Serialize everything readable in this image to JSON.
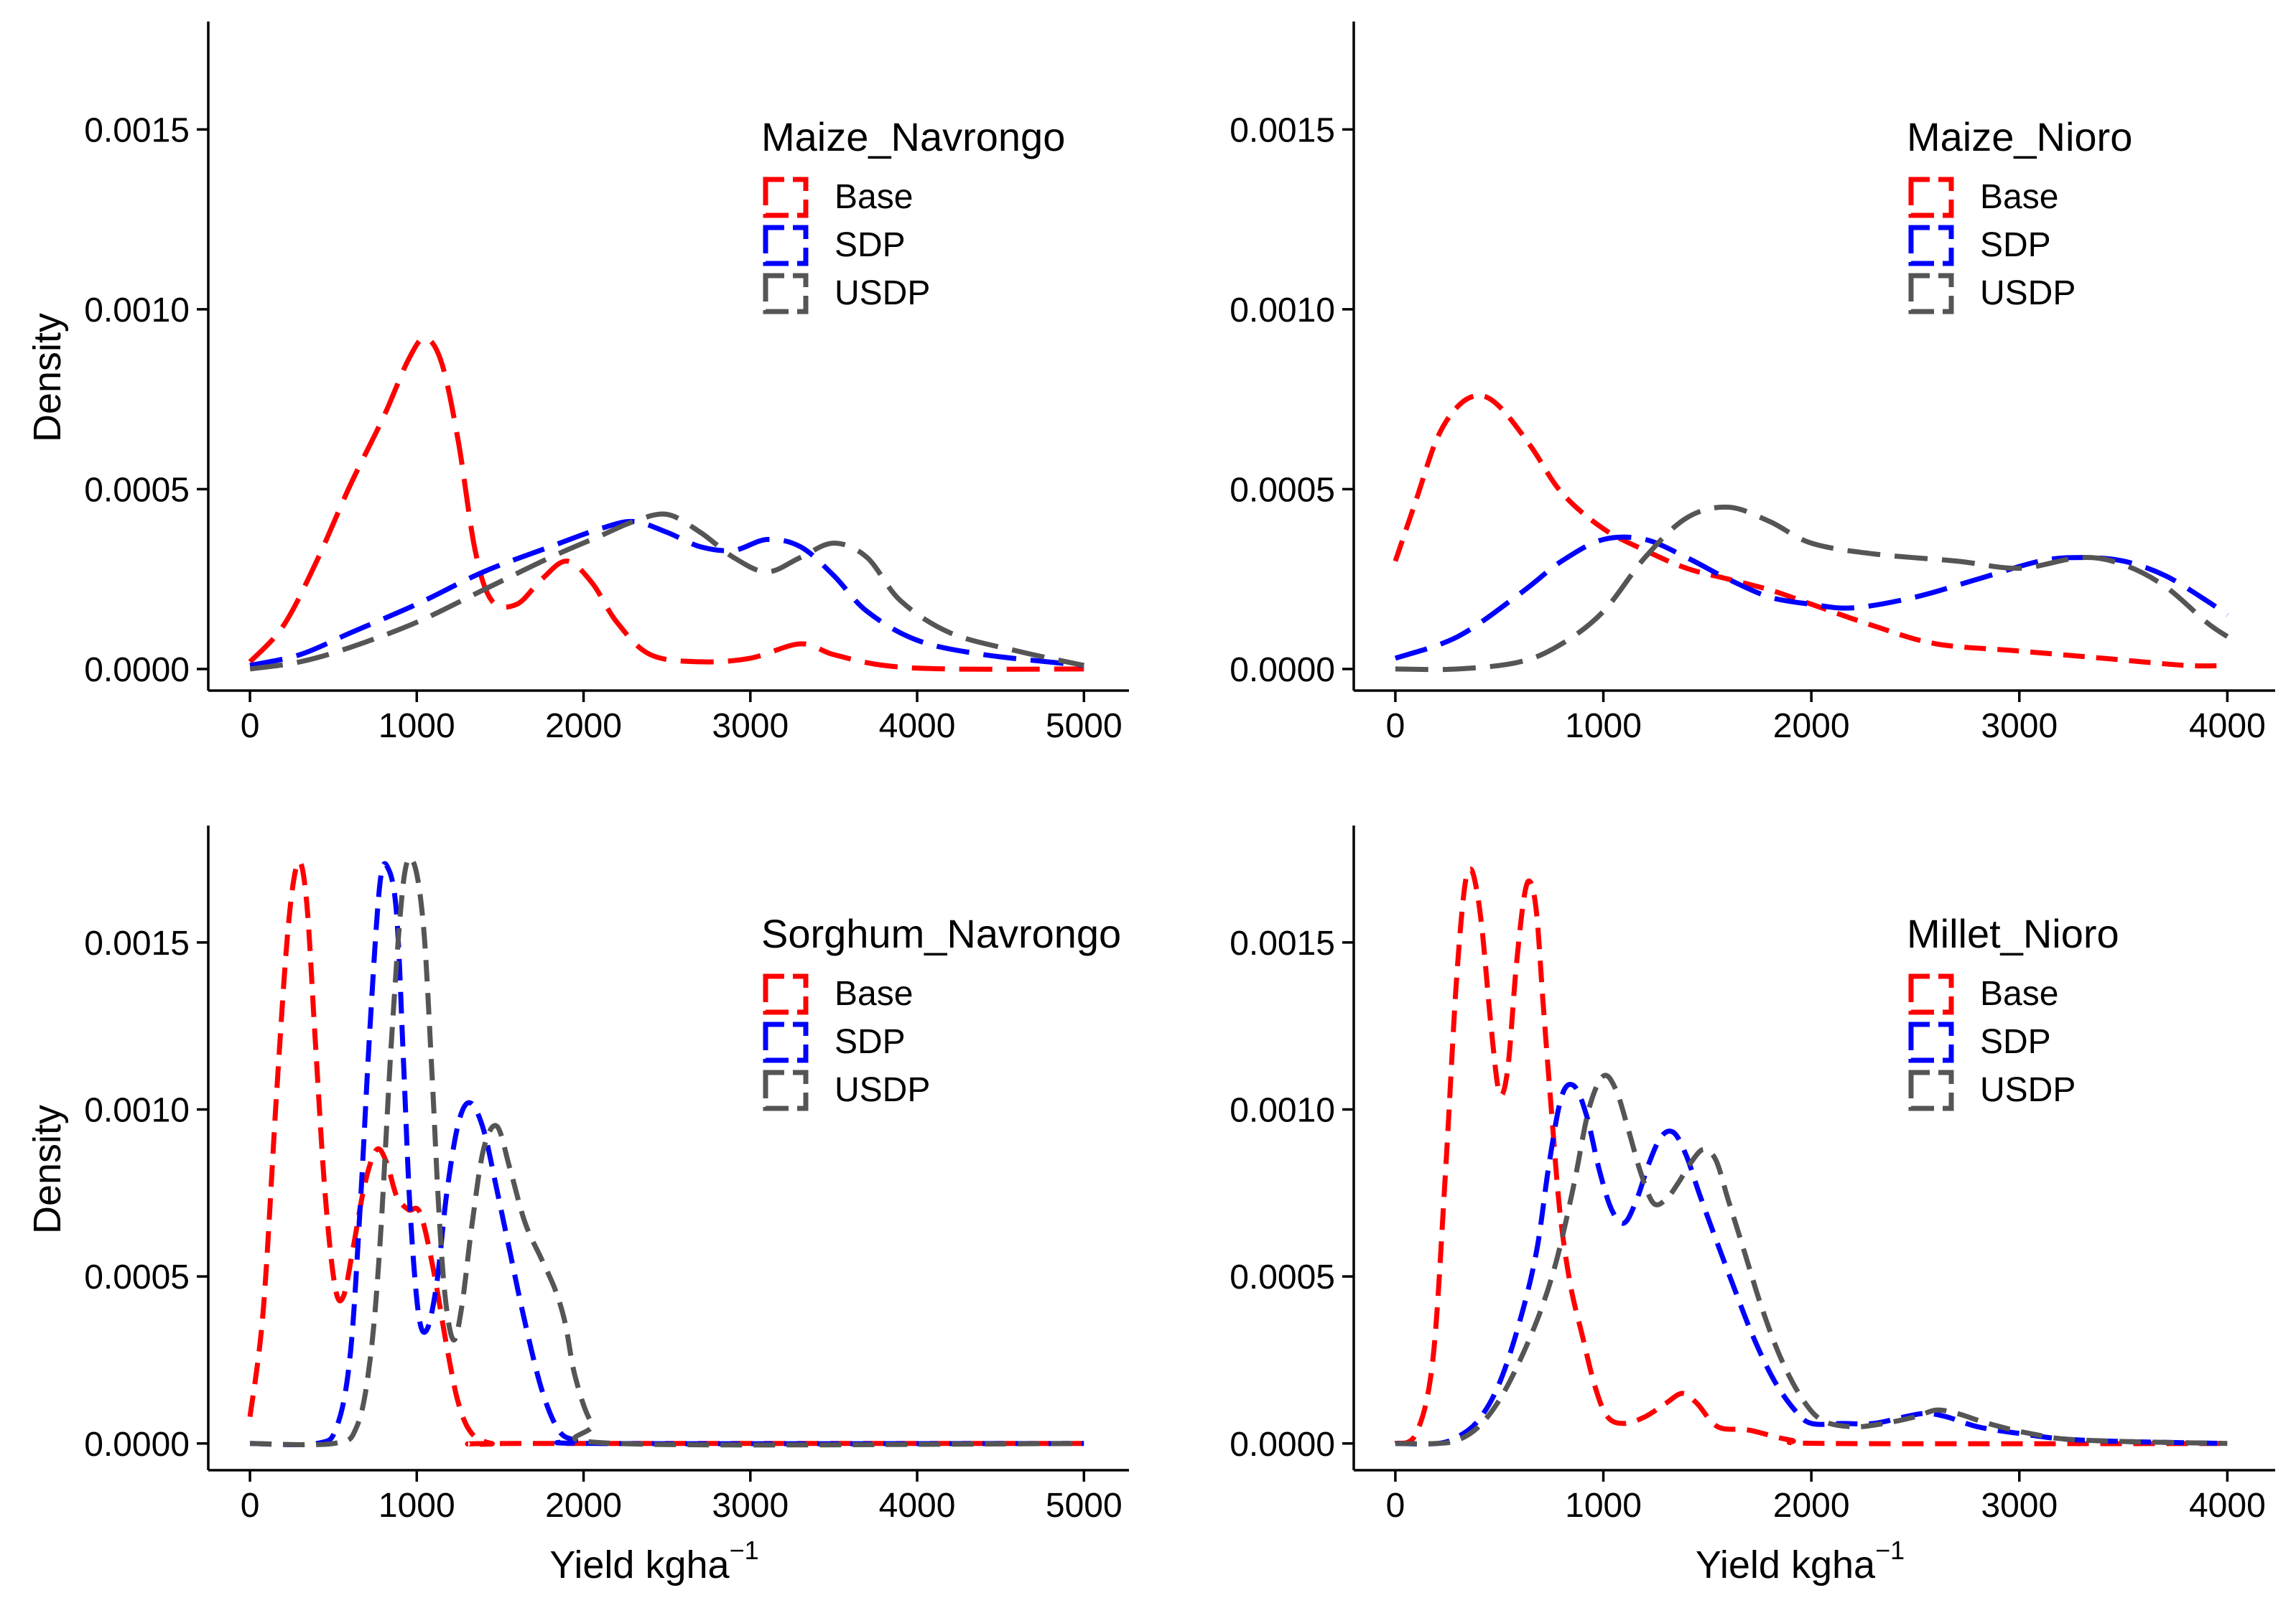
{
  "chart_data": [
    {
      "type": "line",
      "id": "maize-navrongo",
      "legend_title": "Maize_Navrongo",
      "ylabel": "Density",
      "xlabel": "",
      "xlim": [
        -250,
        5270
      ],
      "ylim": [
        -6e-05,
        0.0018
      ],
      "x_ticks": [
        0,
        1000,
        2000,
        3000,
        4000,
        5000
      ],
      "x_tick_labels": [
        "0",
        "1000",
        "2000",
        "3000",
        "4000",
        "5000"
      ],
      "y_ticks": [
        0,
        0.0005,
        0.001,
        0.0015
      ],
      "y_tick_labels": [
        "0.0000",
        "0.0005",
        "0.0010",
        "0.0015"
      ],
      "legend_position": "top-right",
      "series": [
        {
          "name": "Base",
          "color": "#ff0000",
          "dash": "long",
          "x": [
            0,
            200,
            400,
            600,
            800,
            950,
            1050,
            1150,
            1250,
            1350,
            1450,
            1600,
            1750,
            1900,
            2050,
            2200,
            2400,
            2700,
            3000,
            3300,
            3500,
            3800,
            4200,
            5000
          ],
          "y": [
            2e-05,
            0.00012,
            0.0003,
            0.00051,
            0.0007,
            0.00086,
            0.00092,
            0.00085,
            0.00063,
            0.00033,
            0.00019,
            0.00018,
            0.00025,
            0.0003,
            0.00024,
            0.00013,
            4e-05,
            2e-05,
            3e-05,
            7e-05,
            4e-05,
            1e-05,
            0,
            0
          ]
        },
        {
          "name": "SDP",
          "color": "#0000ff",
          "dash": "long",
          "x": [
            0,
            300,
            600,
            1000,
            1400,
            1800,
            2100,
            2300,
            2500,
            2700,
            2900,
            3100,
            3300,
            3500,
            3700,
            4000,
            4400,
            5000
          ],
          "y": [
            1e-05,
            4e-05,
            0.0001,
            0.00018,
            0.00027,
            0.00034,
            0.00039,
            0.00041,
            0.00038,
            0.00034,
            0.00033,
            0.00036,
            0.00034,
            0.00026,
            0.00016,
            8e-05,
            4e-05,
            1e-05
          ]
        },
        {
          "name": "USDP",
          "color": "#555555",
          "dash": "long",
          "x": [
            0,
            300,
            600,
            1000,
            1400,
            1800,
            2100,
            2300,
            2500,
            2700,
            2900,
            3100,
            3300,
            3500,
            3700,
            3900,
            4200,
            4600,
            5000
          ],
          "y": [
            0,
            2e-05,
            6e-05,
            0.00013,
            0.00022,
            0.00031,
            0.00037,
            0.00041,
            0.00043,
            0.00038,
            0.00031,
            0.00027,
            0.00031,
            0.00035,
            0.00031,
            0.00019,
            0.0001,
            5e-05,
            1e-05
          ]
        }
      ]
    },
    {
      "type": "line",
      "id": "maize-nioro",
      "legend_title": "Maize_Nioro",
      "ylabel": "",
      "xlabel": "",
      "xlim": [
        -200,
        4230
      ],
      "ylim": [
        -6e-05,
        0.0018
      ],
      "x_ticks": [
        0,
        1000,
        2000,
        3000,
        4000
      ],
      "x_tick_labels": [
        "0",
        "1000",
        "2000",
        "3000",
        "4000"
      ],
      "y_ticks": [
        0,
        0.0005,
        0.001,
        0.0015
      ],
      "y_tick_labels": [
        "0.0000",
        "0.0005",
        "0.0010",
        "0.0015"
      ],
      "legend_position": "top-right",
      "series": [
        {
          "name": "Base",
          "color": "#ff0000",
          "dash": "medium",
          "x": [
            0,
            100,
            200,
            300,
            400,
            500,
            650,
            800,
            1000,
            1200,
            1400,
            1600,
            1800,
            2000,
            2300,
            2600,
            3000,
            3400,
            3800,
            4000
          ],
          "y": [
            0.0003,
            0.00047,
            0.00064,
            0.00073,
            0.00076,
            0.00073,
            0.00062,
            0.00049,
            0.00039,
            0.00033,
            0.00028,
            0.00025,
            0.00022,
            0.00018,
            0.00012,
            7e-05,
            5e-05,
            3e-05,
            1e-05,
            1e-05
          ]
        },
        {
          "name": "SDP",
          "color": "#0000ff",
          "dash": "long",
          "x": [
            0,
            300,
            600,
            800,
            1000,
            1200,
            1400,
            1600,
            1800,
            2000,
            2200,
            2500,
            2800,
            3100,
            3300,
            3500,
            3700,
            3900,
            4000
          ],
          "y": [
            3e-05,
            9e-05,
            0.00021,
            0.0003,
            0.00036,
            0.00036,
            0.00031,
            0.00025,
            0.0002,
            0.00018,
            0.00017,
            0.0002,
            0.00025,
            0.0003,
            0.00031,
            0.0003,
            0.00026,
            0.00019,
            0.00015
          ]
        },
        {
          "name": "USDP",
          "color": "#555555",
          "dash": "long",
          "x": [
            0,
            300,
            600,
            800,
            1000,
            1200,
            1400,
            1600,
            1800,
            2000,
            2300,
            2700,
            3000,
            3300,
            3500,
            3700,
            3900,
            4000
          ],
          "y": [
            0,
            0,
            2e-05,
            7e-05,
            0.00016,
            0.00031,
            0.00042,
            0.00045,
            0.00041,
            0.00035,
            0.00032,
            0.0003,
            0.00028,
            0.00031,
            0.00029,
            0.00023,
            0.00013,
            9e-05
          ]
        }
      ]
    },
    {
      "type": "line",
      "id": "sorghum-navrongo",
      "legend_title": "Sorghum_Navrongo",
      "ylabel": "Density",
      "xlabel": "Yield  kgha",
      "xlabel_superscript": "−1",
      "xlim": [
        -250,
        5270
      ],
      "ylim": [
        -8e-05,
        0.00185
      ],
      "x_ticks": [
        0,
        1000,
        2000,
        3000,
        4000,
        5000
      ],
      "x_tick_labels": [
        "0",
        "1000",
        "2000",
        "3000",
        "4000",
        "5000"
      ],
      "y_ticks": [
        0,
        0.0005,
        0.001,
        0.0015
      ],
      "y_tick_labels": [
        "0.0000",
        "0.0005",
        "0.0010",
        "0.0015"
      ],
      "legend_position": "top-right",
      "series": [
        {
          "name": "Base",
          "color": "#ff0000",
          "dash": "medium",
          "x": [
            0,
            80,
            160,
            230,
            290,
            340,
            390,
            450,
            510,
            560,
            620,
            690,
            760,
            820,
            880,
            950,
            1020,
            1100,
            1180,
            1250,
            1330,
            1450,
            1600,
            5000
          ],
          "y": [
            8e-05,
            0.0004,
            0.00105,
            0.00155,
            0.00174,
            0.00162,
            0.00122,
            0.00075,
            0.00047,
            0.00044,
            0.00059,
            0.00078,
            0.00088,
            0.00084,
            0.00074,
            0.0007,
            0.00069,
            0.00052,
            0.00029,
            0.00012,
            3e-05,
            0,
            0,
            0
          ]
        },
        {
          "name": "SDP",
          "color": "#0000ff",
          "dash": "medium",
          "x": [
            0,
            400,
            520,
            600,
            660,
            720,
            780,
            830,
            880,
            920,
            960,
            1010,
            1060,
            1120,
            1180,
            1250,
            1320,
            1400,
            1480,
            1560,
            1650,
            1750,
            1850,
            1950,
            2100,
            5000
          ],
          "y": [
            0,
            0,
            5e-05,
            0.00026,
            0.0007,
            0.00125,
            0.00168,
            0.00172,
            0.00158,
            0.00115,
            0.0007,
            0.00039,
            0.00034,
            0.00048,
            0.00075,
            0.00096,
            0.00102,
            0.00094,
            0.00076,
            0.00057,
            0.00036,
            0.00016,
            4e-05,
            1e-05,
            0,
            0
          ]
        },
        {
          "name": "USDP",
          "color": "#555555",
          "dash": "medium",
          "x": [
            0,
            500,
            640,
            720,
            780,
            850,
            920,
            980,
            1040,
            1090,
            1130,
            1170,
            1220,
            1270,
            1330,
            1400,
            1480,
            1560,
            1650,
            1750,
            1830,
            1890,
            1950,
            2050,
            2200,
            5000
          ],
          "y": [
            0,
            0,
            5e-05,
            0.00025,
            0.0006,
            0.00122,
            0.00168,
            0.00174,
            0.00155,
            0.00112,
            0.00072,
            0.00044,
            0.00031,
            0.00041,
            0.00065,
            0.00088,
            0.00095,
            0.00082,
            0.00066,
            0.00055,
            0.00046,
            0.00036,
            0.0002,
            6e-05,
            0,
            0
          ]
        }
      ]
    },
    {
      "type": "line",
      "id": "millet-nioro",
      "legend_title": "Millet_Nioro",
      "ylabel": "",
      "xlabel": "Yield  kgha",
      "xlabel_superscript": "−1",
      "xlim": [
        -200,
        4230
      ],
      "ylim": [
        -8e-05,
        0.00185
      ],
      "x_ticks": [
        0,
        1000,
        2000,
        3000,
        4000
      ],
      "x_tick_labels": [
        "0",
        "1000",
        "2000",
        "3000",
        "4000"
      ],
      "y_ticks": [
        0,
        0.0005,
        0.001,
        0.0015
      ],
      "y_tick_labels": [
        "0.0000",
        "0.0005",
        "0.0010",
        "0.0015"
      ],
      "legend_position": "top-right",
      "series": [
        {
          "name": "Base",
          "color": "#ff0000",
          "dash": "medium",
          "x": [
            0,
            100,
            180,
            240,
            290,
            330,
            360,
            390,
            420,
            460,
            500,
            540,
            580,
            620,
            650,
            680,
            710,
            750,
            790,
            840,
            900,
            960,
            1020,
            1100,
            1200,
            1300,
            1380,
            1450,
            1550,
            1700,
            1900,
            2100,
            4000
          ],
          "y": [
            0,
            3e-05,
            0.00025,
            0.0008,
            0.00135,
            0.00165,
            0.00172,
            0.00166,
            0.00152,
            0.00125,
            0.00105,
            0.00112,
            0.00142,
            0.00164,
            0.00168,
            0.00158,
            0.00132,
            0.001,
            0.0007,
            0.00048,
            0.00032,
            0.00017,
            8e-05,
            6e-05,
            8e-05,
            0.00012,
            0.00015,
            0.00012,
            5e-05,
            4e-05,
            1e-05,
            0,
            0
          ]
        },
        {
          "name": "SDP",
          "color": "#0000ff",
          "dash": "medium",
          "x": [
            0,
            200,
            300,
            400,
            500,
            600,
            680,
            740,
            800,
            860,
            920,
            980,
            1040,
            1100,
            1160,
            1220,
            1280,
            1340,
            1400,
            1460,
            1530,
            1620,
            1720,
            1820,
            1920,
            2000,
            2150,
            2300,
            2450,
            2550,
            2650,
            2800,
            3000,
            3300,
            4000
          ],
          "y": [
            0,
            0,
            2e-05,
            7e-05,
            0.00018,
            0.00037,
            0.00058,
            0.00084,
            0.00104,
            0.00107,
            0.00098,
            0.00082,
            0.0007,
            0.00066,
            0.00073,
            0.00084,
            0.00092,
            0.00093,
            0.00086,
            0.00075,
            0.00063,
            0.00048,
            0.00032,
            0.00019,
            0.0001,
            6e-05,
            6e-05,
            6e-05,
            8e-05,
            9e-05,
            8e-05,
            5e-05,
            3e-05,
            1e-05,
            0
          ]
        },
        {
          "name": "USDP",
          "color": "#555555",
          "dash": "medium",
          "x": [
            0,
            200,
            300,
            400,
            500,
            600,
            700,
            780,
            860,
            930,
            1000,
            1060,
            1120,
            1180,
            1240,
            1300,
            1360,
            1420,
            1480,
            1540,
            1600,
            1680,
            1760,
            1850,
            1950,
            2050,
            2200,
            2350,
            2500,
            2600,
            2700,
            2850,
            3050,
            3300,
            4000
          ],
          "y": [
            0,
            0,
            1e-05,
            5e-05,
            0.00013,
            0.00025,
            0.0004,
            0.00056,
            0.00078,
            0.001,
            0.0011,
            0.00106,
            0.00094,
            0.00081,
            0.00072,
            0.00073,
            0.00078,
            0.00084,
            0.00088,
            0.00085,
            0.00073,
            0.00057,
            0.00041,
            0.00026,
            0.00014,
            7e-05,
            5e-05,
            6e-05,
            8e-05,
            0.0001,
            9e-05,
            6e-05,
            3e-05,
            1e-05,
            0
          ]
        }
      ]
    }
  ]
}
